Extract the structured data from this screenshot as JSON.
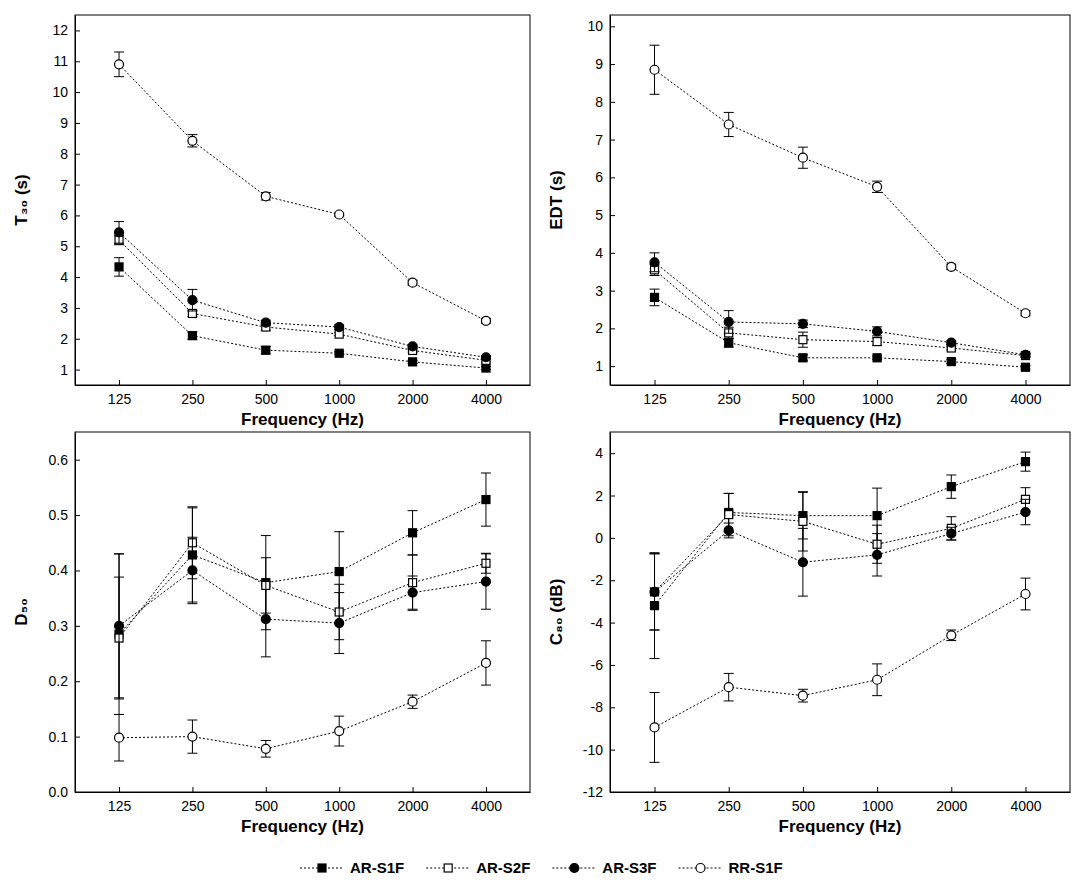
{
  "chart_data": [
    {
      "type": "line",
      "y_label": "T₃₀ (s)",
      "x_label": "Frequency (Hz)",
      "categories": [
        "125",
        "250",
        "500",
        "1000",
        "2000",
        "4000"
      ],
      "ylim": [
        0.5,
        12.5
      ],
      "yticks": [
        1,
        2,
        3,
        4,
        5,
        6,
        7,
        8,
        9,
        10,
        11,
        12
      ],
      "legend": "bottom",
      "series": [
        {
          "name": "AR-S1F",
          "color": "#000000",
          "marker": "square-filled",
          "line_style": "dotted",
          "values": [
            4.33,
            2.1,
            1.63,
            1.53,
            1.25,
            1.05
          ],
          "errors": [
            0.3,
            0.12,
            0.12,
            0.05,
            0.05,
            0.05
          ]
        },
        {
          "name": "AR-S2F",
          "color": "#000000",
          "marker": "square-open",
          "line_style": "dotted",
          "values": [
            5.2,
            2.82,
            2.38,
            2.15,
            1.62,
            1.3
          ],
          "errors": [
            0.15,
            0.1,
            0.1,
            0.05,
            0.05,
            0.05
          ]
        },
        {
          "name": "AR-S3F",
          "color": "#000000",
          "marker": "circle-filled",
          "line_style": "dotted",
          "values": [
            5.45,
            3.25,
            2.52,
            2.38,
            1.75,
            1.4
          ],
          "errors": [
            0.35,
            0.35,
            0.08,
            0.08,
            0.05,
            0.05
          ]
        },
        {
          "name": "RR-S1F",
          "color": "#000000",
          "marker": "circle-open",
          "line_style": "dotted",
          "values": [
            10.9,
            8.42,
            6.62,
            6.03,
            3.82,
            2.58
          ],
          "errors": [
            0.4,
            0.2,
            0.12,
            0.05,
            0.08,
            0.08
          ]
        }
      ]
    },
    {
      "type": "line",
      "y_label": "EDT (s)",
      "x_label": "Frequency (Hz)",
      "categories": [
        "125",
        "250",
        "500",
        "1000",
        "2000",
        "4000"
      ],
      "ylim": [
        0.5,
        10.3
      ],
      "yticks": [
        1,
        2,
        3,
        4,
        5,
        6,
        7,
        8,
        9,
        10
      ],
      "series": [
        {
          "name": "AR-S1F",
          "color": "#000000",
          "marker": "square-filled",
          "line_style": "dotted",
          "values": [
            2.82,
            1.62,
            1.22,
            1.22,
            1.12,
            0.97
          ],
          "errors": [
            0.22,
            0.12,
            0.08,
            0.05,
            0.05,
            0.05
          ]
        },
        {
          "name": "AR-S2F",
          "color": "#000000",
          "marker": "square-open",
          "line_style": "dotted",
          "values": [
            3.55,
            1.88,
            1.7,
            1.65,
            1.48,
            1.28
          ],
          "errors": [
            0.15,
            0.15,
            0.2,
            0.1,
            0.05,
            0.05
          ]
        },
        {
          "name": "AR-S3F",
          "color": "#000000",
          "marker": "circle-filled",
          "line_style": "dotted",
          "values": [
            3.75,
            2.17,
            2.12,
            1.92,
            1.62,
            1.3
          ],
          "errors": [
            0.25,
            0.3,
            0.1,
            0.12,
            0.05,
            0.05
          ]
        },
        {
          "name": "RR-S1F",
          "color": "#000000",
          "marker": "circle-open",
          "line_style": "dotted",
          "values": [
            8.85,
            7.4,
            6.52,
            5.75,
            3.63,
            2.4
          ],
          "errors": [
            0.65,
            0.32,
            0.28,
            0.15,
            0.07,
            0.07
          ]
        }
      ]
    },
    {
      "type": "line",
      "y_label": "D₅₀",
      "x_label": "Frequency (Hz)",
      "categories": [
        "125",
        "250",
        "500",
        "1000",
        "2000",
        "4000"
      ],
      "ylim": [
        0,
        0.65
      ],
      "yticks": [
        {
          "value": 0,
          "label": "0.0"
        },
        0.1,
        0.2,
        0.3,
        0.4,
        0.5,
        0.6
      ],
      "series": [
        {
          "name": "AR-S1F",
          "color": "#000000",
          "marker": "square-filled",
          "line_style": "dotted",
          "values": [
            0.285,
            0.428,
            0.378,
            0.398,
            0.468,
            0.528
          ],
          "errors": [
            0.145,
            0.085,
            0.085,
            0.072,
            0.04,
            0.048
          ]
        },
        {
          "name": "AR-S2F",
          "color": "#000000",
          "marker": "square-open",
          "line_style": "dotted",
          "values": [
            0.278,
            0.45,
            0.373,
            0.325,
            0.378,
            0.413
          ],
          "errors": [
            0.11,
            0.065,
            0.05,
            0.05,
            0.05,
            0.018
          ]
        },
        {
          "name": "AR-S3F",
          "color": "#000000",
          "marker": "circle-filled",
          "line_style": "dotted",
          "values": [
            0.3,
            0.4,
            0.312,
            0.305,
            0.36,
            0.38
          ],
          "errors": [
            0.13,
            0.06,
            0.068,
            0.055,
            0.03,
            0.05
          ]
        },
        {
          "name": "RR-S1F",
          "color": "#000000",
          "marker": "circle-open",
          "line_style": "dotted",
          "values": [
            0.098,
            0.1,
            0.078,
            0.11,
            0.163,
            0.233
          ],
          "errors": [
            0.042,
            0.03,
            0.015,
            0.027,
            0.012,
            0.04
          ]
        }
      ]
    },
    {
      "type": "line",
      "y_label": "C₈₀ (dB)",
      "x_label": "Frequency (Hz)",
      "categories": [
        "125",
        "250",
        "500",
        "1000",
        "2000",
        "4000"
      ],
      "ylim": [
        -12,
        5
      ],
      "yticks": [
        -12,
        -10,
        -8,
        -6,
        -4,
        -2,
        0,
        2,
        4
      ],
      "series": [
        {
          "name": "AR-S1F",
          "color": "#000000",
          "marker": "square-filled",
          "line_style": "dotted",
          "values": [
            -3.2,
            1.2,
            1.05,
            1.05,
            2.42,
            3.6
          ],
          "errors": [
            2.5,
            0.9,
            1.1,
            1.3,
            0.55,
            0.45
          ]
        },
        {
          "name": "AR-S2F",
          "color": "#000000",
          "marker": "square-open",
          "line_style": "dotted",
          "values": [
            -2.55,
            1.1,
            0.78,
            -0.3,
            0.45,
            1.82
          ],
          "errors": [
            1.8,
            1.0,
            1.4,
            0.9,
            0.55,
            0.55
          ]
        },
        {
          "name": "AR-S3F",
          "color": "#000000",
          "marker": "circle-filled",
          "line_style": "dotted",
          "values": [
            -2.55,
            0.35,
            -1.15,
            -0.8,
            0.2,
            1.22
          ],
          "errors": [
            1.8,
            0.35,
            1.6,
            1.0,
            0.3,
            0.6
          ]
        },
        {
          "name": "RR-S1F",
          "color": "#000000",
          "marker": "circle-open",
          "line_style": "dotted",
          "values": [
            -8.95,
            -7.05,
            -7.45,
            -6.7,
            -4.6,
            -2.65
          ],
          "errors": [
            1.65,
            0.65,
            0.3,
            0.75,
            0.25,
            0.75
          ]
        }
      ]
    }
  ]
}
